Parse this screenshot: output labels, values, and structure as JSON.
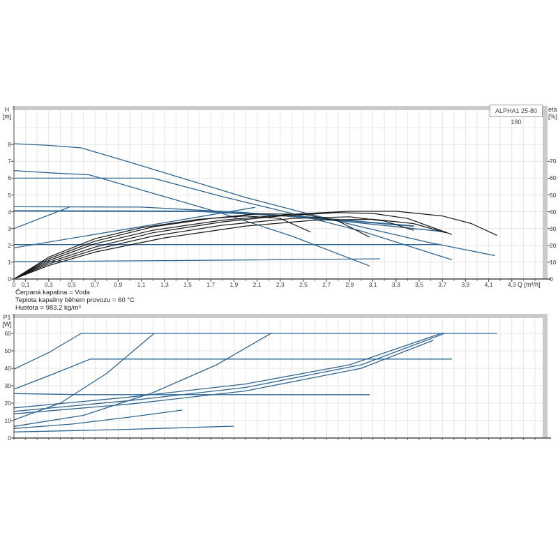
{
  "header": {
    "title_box": "ALPHA1 25-80 180"
  },
  "top_chart": {
    "left_axis_name": "H",
    "left_axis_unit": "[m]",
    "right_axis_name": "eta",
    "right_axis_unit": "[%]",
    "x_axis_unit": "Q [m³/h]"
  },
  "bottom_chart": {
    "left_axis_name": "P1",
    "left_axis_unit": "[W]"
  },
  "info": {
    "lines": [
      "Čerpaná kapalina = Voda",
      "Teplota kapaliny během provozu = 60 °C",
      "Hustota = 983.2 kg/m³"
    ]
  },
  "colors": {
    "curve_blue": "#2d6490",
    "curve_black": "#161616",
    "grid": "#e5e5e5",
    "bar": "#cacaca",
    "axis": "#4a4a4a",
    "text": "#333333"
  },
  "chart_data": [
    {
      "type": "line",
      "title": "ALPHA1 25-80 180",
      "xlabel": "Q [m³/h]",
      "ylabel": "H [m]",
      "y2label": "eta [%]",
      "xlim": [
        0,
        4.56
      ],
      "ylim": [
        0,
        10.3
      ],
      "y2lim": [
        0,
        103
      ],
      "grid": "on",
      "x_tick_labels": [
        "0",
        "0,1",
        "0,3",
        "0,5",
        "0,7",
        "0,9",
        "1,1",
        "1,3",
        "1,5",
        "1,7",
        "1,9",
        "2,1",
        "2,3",
        "2,5",
        "2,7",
        "2,9",
        "3,1",
        "3,3",
        "3,5",
        "3,7",
        "3,9",
        "4,1",
        "4,3"
      ],
      "y_tick_labels": [
        "0",
        "1",
        "2",
        "3",
        "4",
        "5",
        "6",
        "7",
        "8"
      ],
      "y2_tick_labels": [
        "0",
        "10",
        "20",
        "30",
        "40",
        "50",
        "60",
        "70"
      ],
      "series": [
        {
          "name": "head-speed-III",
          "axis": "y",
          "color": "#2d6490",
          "points": [
            [
              0,
              8.05
            ],
            [
              0.3,
              7.95
            ],
            [
              0.58,
              7.8
            ],
            [
              1.0,
              6.95
            ],
            [
              1.5,
              5.9
            ],
            [
              2.0,
              4.85
            ],
            [
              2.5,
              3.95
            ],
            [
              3.0,
              3.1
            ],
            [
              3.6,
              2.15
            ],
            [
              4.15,
              1.4
            ]
          ]
        },
        {
          "name": "head-speed-II",
          "axis": "y",
          "color": "#2d6490",
          "points": [
            [
              0,
              6.45
            ],
            [
              0.35,
              6.3
            ],
            [
              0.65,
              6.2
            ],
            [
              1.2,
              5.1
            ],
            [
              1.8,
              3.9
            ],
            [
              2.4,
              2.55
            ],
            [
              3.07,
              0.78
            ]
          ]
        },
        {
          "name": "head-cp3",
          "axis": "y",
          "color": "#2d6490",
          "points": [
            [
              0,
              6.0
            ],
            [
              1.2,
              6.0
            ],
            [
              1.8,
              4.9
            ],
            [
              2.4,
              3.9
            ],
            [
              3.0,
              2.85
            ],
            [
              3.78,
              1.15
            ]
          ]
        },
        {
          "name": "head-cp2",
          "axis": "y",
          "color": "#2d6490",
          "points": [
            [
              0,
              4.3
            ],
            [
              1.1,
              4.28
            ],
            [
              2.0,
              3.95
            ],
            [
              2.9,
              3.4
            ],
            [
              3.73,
              2.8
            ]
          ]
        },
        {
          "name": "head-autoadapt-flat",
          "axis": "y",
          "color": "#2d6490",
          "emphasis": true,
          "points": [
            [
              0,
              4.05
            ],
            [
              1.6,
              4.03
            ],
            [
              2.5,
              3.7
            ],
            [
              3.45,
              3.15
            ]
          ]
        },
        {
          "name": "head-pp3-rise",
          "axis": "y",
          "color": "#2d6490",
          "points": [
            [
              0,
              3.0
            ],
            [
              0.48,
              4.28
            ]
          ]
        },
        {
          "name": "head-pp-rise",
          "axis": "y",
          "color": "#2d6490",
          "points": [
            [
              0,
              1.85
            ],
            [
              1.0,
              3.0
            ],
            [
              2.08,
              4.26
            ]
          ]
        },
        {
          "name": "head-cp1-flat",
          "axis": "y",
          "color": "#2d6490",
          "points": [
            [
              0,
              2.05
            ],
            [
              3.67,
              2.05
            ]
          ]
        },
        {
          "name": "head-low",
          "axis": "y",
          "color": "#2d6490",
          "points": [
            [
              0,
              1.03
            ],
            [
              1.8,
              1.12
            ],
            [
              3.16,
              1.2
            ]
          ]
        },
        {
          "name": "eta-1",
          "axis": "y2",
          "color": "#161616",
          "points": [
            [
              0,
              0
            ],
            [
              0.3,
              11
            ],
            [
              0.7,
              21
            ],
            [
              1.2,
              29
            ],
            [
              1.8,
              35
            ],
            [
              2.4,
              38.5
            ],
            [
              2.9,
              40.3
            ],
            [
              3.3,
              40.3
            ],
            [
              3.7,
              37.5
            ],
            [
              3.95,
              33
            ],
            [
              4.17,
              26
            ]
          ]
        },
        {
          "name": "eta-2",
          "axis": "y2",
          "color": "#161616",
          "points": [
            [
              0,
              0
            ],
            [
              0.3,
              10
            ],
            [
              0.7,
              19
            ],
            [
              1.2,
              27.5
            ],
            [
              1.8,
              34
            ],
            [
              2.3,
              37.5
            ],
            [
              2.8,
              39.5
            ],
            [
              3.1,
              39
            ],
            [
              3.4,
              36
            ],
            [
              3.78,
              26.5
            ]
          ]
        },
        {
          "name": "eta-3",
          "axis": "y2",
          "color": "#161616",
          "points": [
            [
              0,
              0
            ],
            [
              0.3,
              12
            ],
            [
              0.7,
              22.5
            ],
            [
              1.2,
              31
            ],
            [
              1.7,
              36
            ],
            [
              2.1,
              38.8
            ],
            [
              2.5,
              38.5
            ],
            [
              2.8,
              34.5
            ],
            [
              3.07,
              25
            ]
          ]
        },
        {
          "name": "eta-4",
          "axis": "y2",
          "color": "#161616",
          "points": [
            [
              0,
              0
            ],
            [
              0.3,
              9
            ],
            [
              0.7,
              17.5
            ],
            [
              1.2,
              25.5
            ],
            [
              1.8,
              32
            ],
            [
              2.4,
              36
            ],
            [
              2.9,
              37
            ],
            [
              3.2,
              34.5
            ],
            [
              3.45,
              29
            ]
          ]
        },
        {
          "name": "eta-5",
          "axis": "y2",
          "color": "#161616",
          "points": [
            [
              0,
              0
            ],
            [
              0.3,
              13
            ],
            [
              0.7,
              24
            ],
            [
              1.1,
              30.5
            ],
            [
              1.6,
              35.5
            ],
            [
              2.0,
              37.5
            ],
            [
              2.3,
              36
            ],
            [
              2.56,
              28
            ]
          ]
        },
        {
          "name": "eta-6",
          "axis": "y2",
          "color": "#161616",
          "points": [
            [
              0,
              0
            ],
            [
              0.3,
              8
            ],
            [
              0.7,
              16
            ],
            [
              1.3,
              24.5
            ],
            [
              2.0,
              31.5
            ],
            [
              2.6,
              35
            ],
            [
              3.1,
              35.5
            ],
            [
              3.45,
              33
            ],
            [
              3.73,
              27.5
            ]
          ]
        }
      ]
    },
    {
      "type": "line",
      "title": "",
      "xlabel": "",
      "ylabel": "P1 [W]",
      "xlim": [
        0,
        4.56
      ],
      "ylim": [
        0,
        68.8
      ],
      "grid": "on",
      "y_tick_labels": [
        "0",
        "10",
        "20",
        "30",
        "40",
        "50",
        "60"
      ],
      "series": [
        {
          "name": "p1-speed-III",
          "axis": "y",
          "color": "#2d6490",
          "points": [
            [
              0,
              39.5
            ],
            [
              0.3,
              49
            ],
            [
              0.58,
              60
            ],
            [
              4.17,
              60
            ]
          ]
        },
        {
          "name": "p1-cp3",
          "axis": "y",
          "color": "#2d6490",
          "points": [
            [
              0,
              28
            ],
            [
              0.35,
              37
            ],
            [
              0.66,
              45.3
            ],
            [
              3.78,
              45.3
            ]
          ]
        },
        {
          "name": "p1-speed-II",
          "axis": "y",
          "color": "#2d6490",
          "points": [
            [
              0,
              25.5
            ],
            [
              0.6,
              24.9
            ],
            [
              3.07,
              24.9
            ]
          ]
        },
        {
          "name": "p1-riser-1",
          "axis": "y",
          "color": "#2d6490",
          "points": [
            [
              0,
              10.4
            ],
            [
              0.4,
              20
            ],
            [
              0.8,
              37
            ],
            [
              1.21,
              60
            ]
          ]
        },
        {
          "name": "p1-riser-2",
          "axis": "y",
          "color": "#2d6490",
          "points": [
            [
              0,
              6.7
            ],
            [
              0.6,
              13
            ],
            [
              1.2,
              26
            ],
            [
              1.75,
              42
            ],
            [
              2.22,
              60
            ]
          ]
        },
        {
          "name": "p1-band-1",
          "axis": "y",
          "color": "#2d6490",
          "points": [
            [
              0,
              17.3
            ],
            [
              1.0,
              23.5
            ],
            [
              2.0,
              31
            ],
            [
              2.9,
              42
            ],
            [
              3.69,
              60
            ]
          ]
        },
        {
          "name": "p1-band-2",
          "axis": "y",
          "color": "#2d6490",
          "points": [
            [
              0,
              15.3
            ],
            [
              1.0,
              21.5
            ],
            [
              2.0,
              29
            ],
            [
              3.0,
              42
            ],
            [
              3.72,
              60
            ]
          ]
        },
        {
          "name": "p1-band-3",
          "axis": "y",
          "color": "#2d6490",
          "points": [
            [
              0,
              13.9
            ],
            [
              1.0,
              19.5
            ],
            [
              2.0,
              27
            ],
            [
              3.0,
              40
            ],
            [
              3.62,
              56
            ]
          ]
        },
        {
          "name": "p1-low-1",
          "axis": "y",
          "color": "#2d6490",
          "points": [
            [
              0,
              5.5
            ],
            [
              0.5,
              8
            ],
            [
              1.0,
              12
            ],
            [
              1.45,
              16
            ]
          ]
        },
        {
          "name": "p1-low-2",
          "axis": "y",
          "color": "#2d6490",
          "points": [
            [
              0,
              3.5
            ],
            [
              1.0,
              5
            ],
            [
              1.9,
              6.8
            ]
          ]
        }
      ]
    }
  ]
}
